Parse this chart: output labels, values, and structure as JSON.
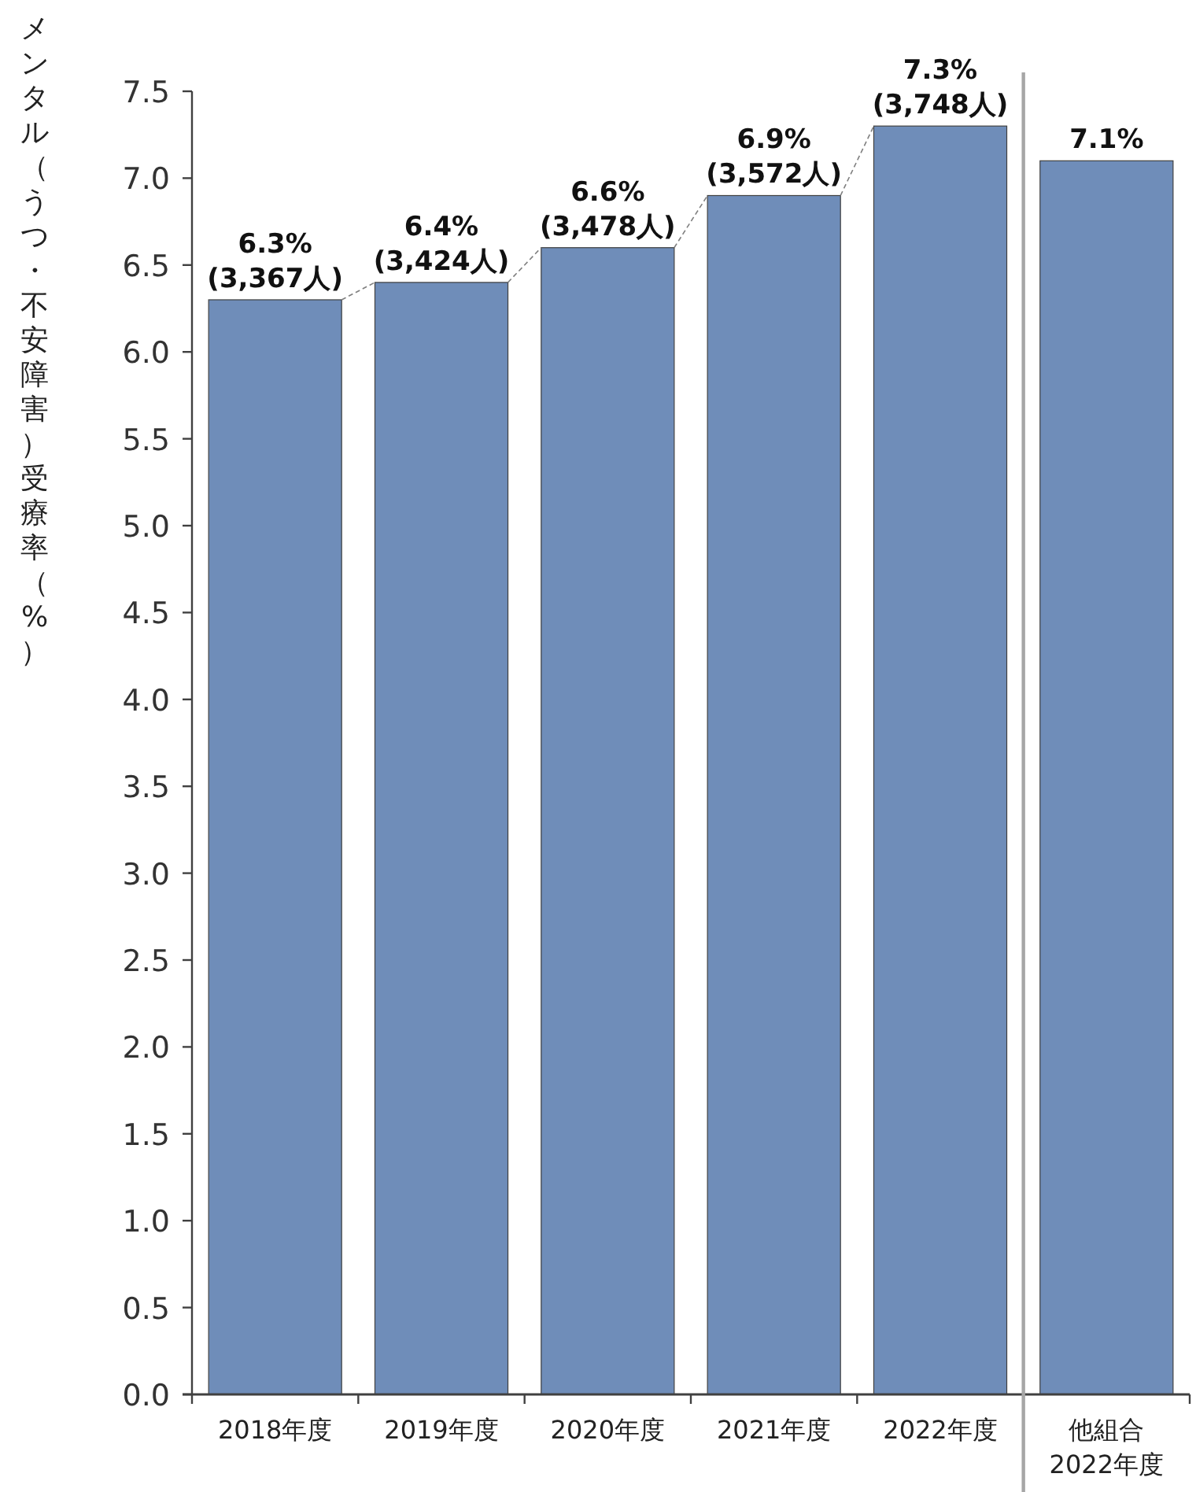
{
  "chart_data": {
    "type": "bar",
    "ylabel": "メンタル（うつ・不安障害）受療率（%）",
    "categories": [
      "2018年度",
      "2019年度",
      "2020年度",
      "2021年度",
      "2022年度",
      "他組合\n2022年度"
    ],
    "values": [
      6.3,
      6.4,
      6.6,
      6.9,
      7.3,
      7.1
    ],
    "value_labels": [
      "6.3%\n(3,367人)",
      "6.4%\n(3,424人)",
      "6.6%\n(3,478人)",
      "6.9%\n(3,572人)",
      "7.3%\n(3,748人)",
      "7.1%"
    ],
    "color": "#6f8db9",
    "ylim": [
      0,
      7.5
    ],
    "yticks": [
      {
        "value": 0,
        "label": "0.0"
      },
      {
        "value": 0.5,
        "label": "0.5"
      },
      {
        "value": 1,
        "label": "1.0"
      },
      {
        "value": 1.5,
        "label": "1.5"
      },
      {
        "value": 2,
        "label": "2.0"
      },
      {
        "value": 2.5,
        "label": "2.5"
      },
      {
        "value": 3,
        "label": "3.0"
      },
      {
        "value": 3.5,
        "label": "3.5"
      },
      {
        "value": 4,
        "label": "4.0"
      },
      {
        "value": 4.5,
        "label": "4.5"
      },
      {
        "value": 5,
        "label": "5.0"
      },
      {
        "value": 5.5,
        "label": "5.5"
      },
      {
        "value": 6,
        "label": "6.0"
      },
      {
        "value": 6.5,
        "label": "6.5"
      },
      {
        "value": 7,
        "label": "7.0"
      },
      {
        "value": 7.5,
        "label": "7.5"
      }
    ],
    "grid": false
  }
}
